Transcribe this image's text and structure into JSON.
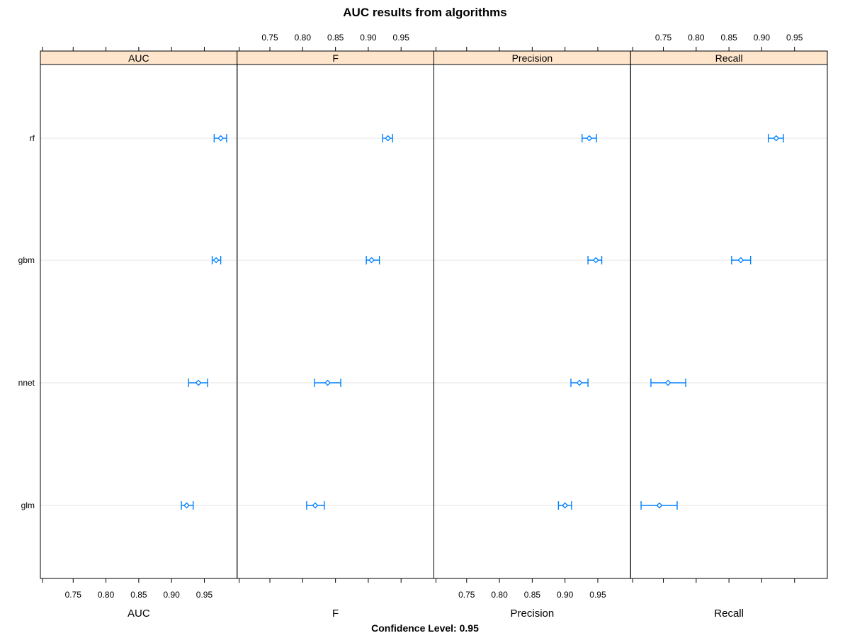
{
  "chart_data": {
    "type": "dotplot-ci",
    "title": "AUC results from algorithms",
    "footer_label": "Confidence Level: 0.95",
    "categories": [
      "rf",
      "gbm",
      "nnet",
      "glm"
    ],
    "xlim": [
      0.7,
      1.0
    ],
    "tick_values": [
      0.75,
      0.8,
      0.85,
      0.9,
      0.95
    ],
    "tick_labels": [
      "0.75",
      "0.80",
      "0.85",
      "0.90",
      "0.95"
    ],
    "colors": {
      "strip": "#ffe5cc",
      "points": "#0080ff",
      "grid": "#e6e6e6"
    },
    "panels": [
      {
        "name": "AUC",
        "bottom_label": "AUC",
        "top_ticks_labeled": false,
        "bottom_ticks_labeled": true,
        "points": [
          {
            "category": "rf",
            "estimate": 0.975,
            "lower": 0.965,
            "upper": 0.984
          },
          {
            "category": "gbm",
            "estimate": 0.968,
            "lower": 0.962,
            "upper": 0.975
          },
          {
            "category": "nnet",
            "estimate": 0.941,
            "lower": 0.926,
            "upper": 0.955
          },
          {
            "category": "glm",
            "estimate": 0.923,
            "lower": 0.915,
            "upper": 0.933
          }
        ]
      },
      {
        "name": "F",
        "bottom_label": "F",
        "top_ticks_labeled": true,
        "bottom_ticks_labeled": false,
        "points": [
          {
            "category": "rf",
            "estimate": 0.93,
            "lower": 0.922,
            "upper": 0.937
          },
          {
            "category": "gbm",
            "estimate": 0.905,
            "lower": 0.897,
            "upper": 0.917
          },
          {
            "category": "nnet",
            "estimate": 0.838,
            "lower": 0.818,
            "upper": 0.858
          },
          {
            "category": "glm",
            "estimate": 0.819,
            "lower": 0.806,
            "upper": 0.833
          }
        ]
      },
      {
        "name": "Precision",
        "bottom_label": "Precision",
        "top_ticks_labeled": false,
        "bottom_ticks_labeled": true,
        "points": [
          {
            "category": "rf",
            "estimate": 0.937,
            "lower": 0.926,
            "upper": 0.948
          },
          {
            "category": "gbm",
            "estimate": 0.947,
            "lower": 0.935,
            "upper": 0.956
          },
          {
            "category": "nnet",
            "estimate": 0.922,
            "lower": 0.909,
            "upper": 0.935
          },
          {
            "category": "glm",
            "estimate": 0.9,
            "lower": 0.89,
            "upper": 0.91
          }
        ]
      },
      {
        "name": "Recall",
        "bottom_label": "Recall",
        "top_ticks_labeled": true,
        "bottom_ticks_labeled": false,
        "points": [
          {
            "category": "rf",
            "estimate": 0.922,
            "lower": 0.91,
            "upper": 0.933
          },
          {
            "category": "gbm",
            "estimate": 0.868,
            "lower": 0.854,
            "upper": 0.883
          },
          {
            "category": "nnet",
            "estimate": 0.757,
            "lower": 0.731,
            "upper": 0.784
          },
          {
            "category": "glm",
            "estimate": 0.744,
            "lower": 0.716,
            "upper": 0.771
          }
        ]
      }
    ]
  }
}
